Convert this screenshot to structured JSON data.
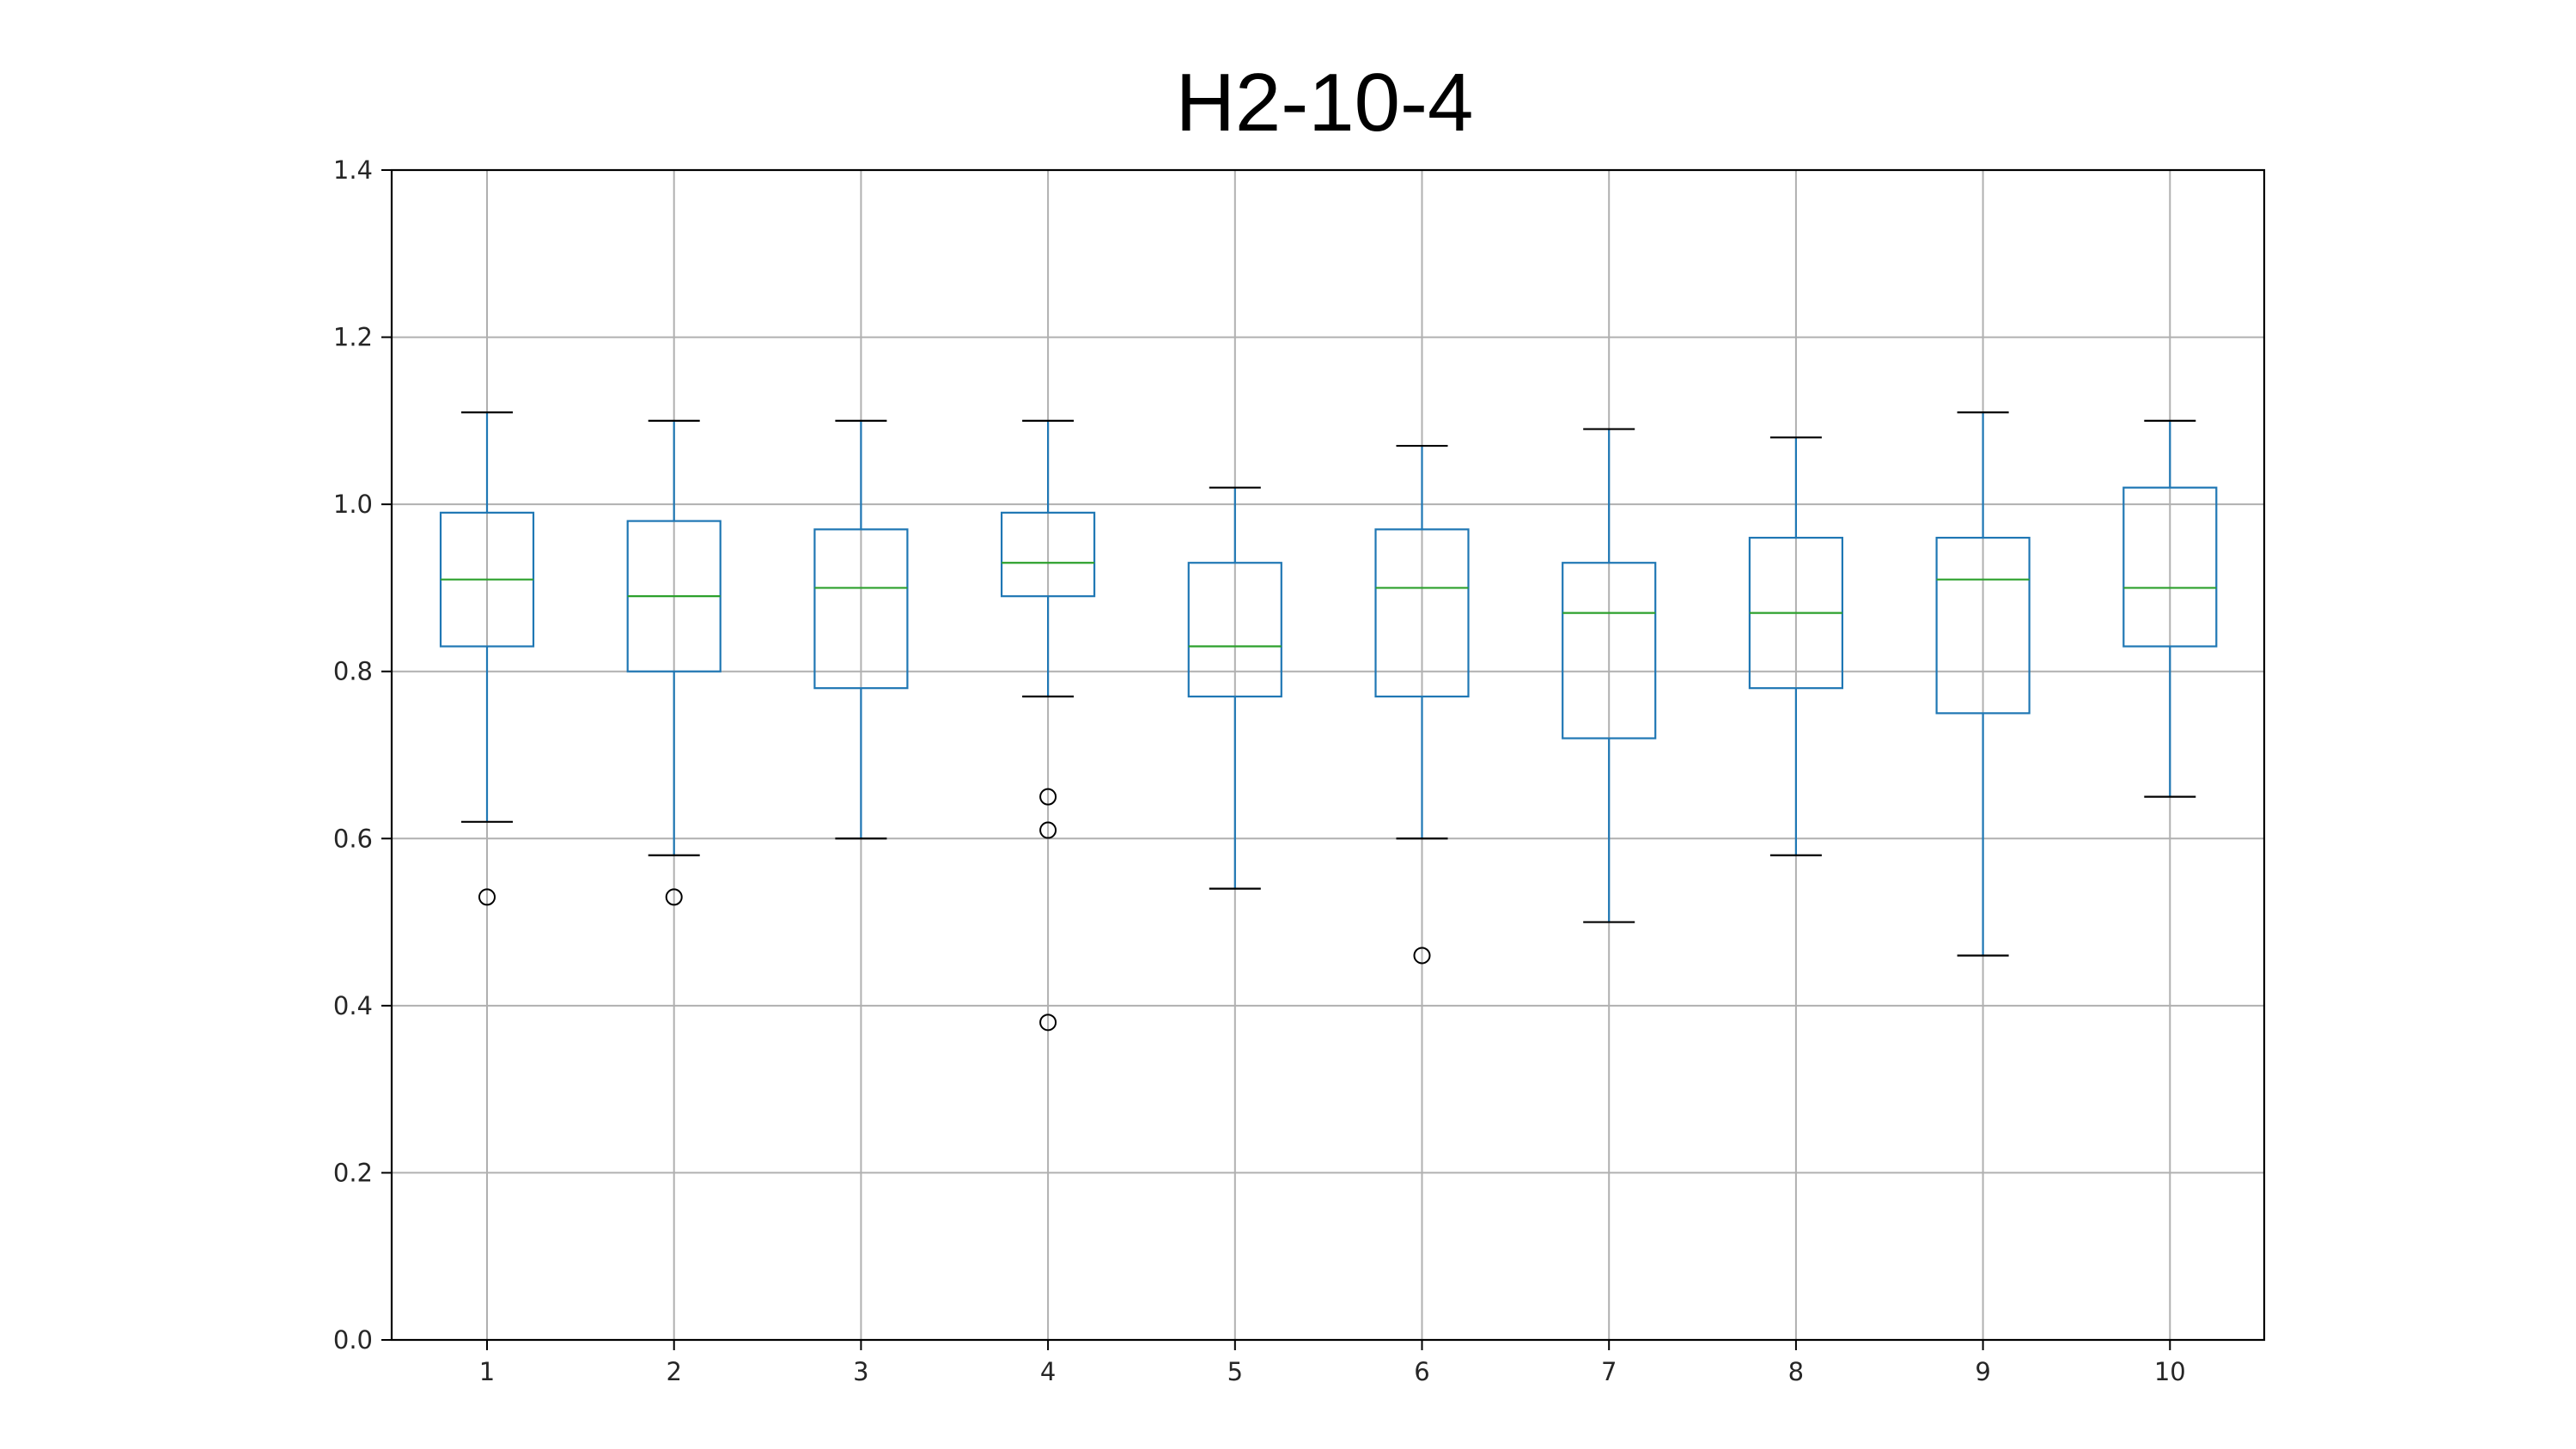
{
  "chart_data": {
    "type": "box",
    "title": "H2-10-4",
    "xlabel": "",
    "ylabel": "",
    "ylim": [
      0.0,
      1.4
    ],
    "yticks": [
      "0.0",
      "0.2",
      "0.4",
      "0.6",
      "0.8",
      "1.0",
      "1.2",
      "1.4"
    ],
    "grid": true,
    "categories": [
      "1",
      "2",
      "3",
      "4",
      "5",
      "6",
      "7",
      "8",
      "9",
      "10"
    ],
    "boxes": [
      {
        "category": "1",
        "whisker_low": 0.62,
        "q1": 0.83,
        "median": 0.91,
        "q3": 0.99,
        "whisker_high": 1.11,
        "outliers": [
          0.53
        ]
      },
      {
        "category": "2",
        "whisker_low": 0.58,
        "q1": 0.8,
        "median": 0.89,
        "q3": 0.98,
        "whisker_high": 1.1,
        "outliers": [
          0.53
        ]
      },
      {
        "category": "3",
        "whisker_low": 0.6,
        "q1": 0.78,
        "median": 0.9,
        "q3": 0.97,
        "whisker_high": 1.1,
        "outliers": []
      },
      {
        "category": "4",
        "whisker_low": 0.77,
        "q1": 0.89,
        "median": 0.93,
        "q3": 0.99,
        "whisker_high": 1.1,
        "outliers": [
          0.65,
          0.61,
          0.38
        ]
      },
      {
        "category": "5",
        "whisker_low": 0.54,
        "q1": 0.77,
        "median": 0.83,
        "q3": 0.93,
        "whisker_high": 1.02,
        "outliers": []
      },
      {
        "category": "6",
        "whisker_low": 0.6,
        "q1": 0.77,
        "median": 0.9,
        "q3": 0.97,
        "whisker_high": 1.07,
        "outliers": [
          0.46
        ]
      },
      {
        "category": "7",
        "whisker_low": 0.5,
        "q1": 0.72,
        "median": 0.87,
        "q3": 0.93,
        "whisker_high": 1.09,
        "outliers": []
      },
      {
        "category": "8",
        "whisker_low": 0.58,
        "q1": 0.78,
        "median": 0.87,
        "q3": 0.96,
        "whisker_high": 1.08,
        "outliers": []
      },
      {
        "category": "9",
        "whisker_low": 0.46,
        "q1": 0.75,
        "median": 0.91,
        "q3": 0.96,
        "whisker_high": 1.11,
        "outliers": []
      },
      {
        "category": "10",
        "whisker_low": 0.65,
        "q1": 0.83,
        "median": 0.9,
        "q3": 1.02,
        "whisker_high": 1.1,
        "outliers": []
      }
    ],
    "colors": {
      "box": "#1f77b4",
      "median": "#2ca02c",
      "whisker_cap": "#000000",
      "grid": "#b0b0b0",
      "outlier": "#000000"
    }
  }
}
